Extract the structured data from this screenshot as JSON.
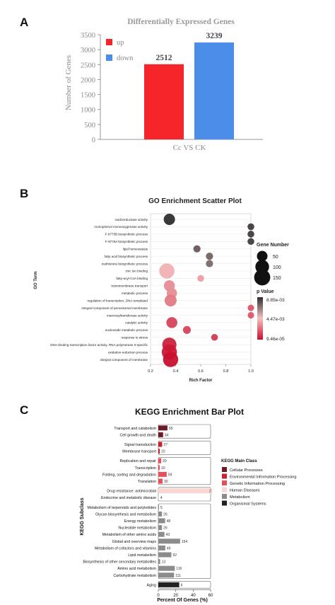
{
  "panels": {
    "a": "A",
    "b": "B",
    "c": "C"
  },
  "chart_data": [
    {
      "type": "bar",
      "title": "Differentially Expressed Genes",
      "categories": [
        "Cc VS CK"
      ],
      "series": [
        {
          "name": "up",
          "values": [
            2512
          ],
          "color": "#f5252a"
        },
        {
          "name": "down",
          "values": [
            3239
          ],
          "color": "#4a8eea"
        }
      ],
      "xlabel": "Cc VS CK",
      "ylabel": "Number of Genes",
      "ylim": [
        0,
        3500
      ],
      "yticks": [
        "0",
        "500",
        "1000",
        "1500",
        "2000",
        "2500",
        "3000",
        "3500"
      ],
      "data_labels": [
        "2512",
        "3239"
      ],
      "legend_position": "top-left",
      "grid": false
    },
    {
      "type": "scatter",
      "title": "GO Enrichment Scatter Plot",
      "xlabel": "Rich Factor",
      "ylabel": "GO Term",
      "xlim": [
        0.2,
        1.0
      ],
      "xticks": [
        "0.2",
        "0.4",
        "0.6",
        "0.8",
        "1.0"
      ],
      "terms": [
        "oxidoreductase activity",
        "monophenol monooxygenase activity",
        "F-9775B biosynthetic process",
        "F-9775A biosynthetic process",
        "lipid homeostasis",
        "fatty acid biosynthetic process",
        "methionine biosynthetic process",
        "zinc ion binding",
        "fatty-acyl-CoA binding",
        "transmembrane transport",
        "metabolic process",
        "regulation of transcription, DNA-templated",
        "integral component of peroxisomal membrane",
        "mannosyltransferase activity",
        "catalytic activity",
        "nucleoside metabolic process",
        "response to stress",
        "DNA-binding transcription factor activity, RNA polymerase II-specific",
        "oxidation-reduction process",
        "integral component of membrane"
      ],
      "rich_factor": [
        0.35,
        1.0,
        1.0,
        1.0,
        0.57,
        0.67,
        0.67,
        0.33,
        0.6,
        0.35,
        0.37,
        0.36,
        1.0,
        1.0,
        0.37,
        0.49,
        0.71,
        0.35,
        0.35,
        0.36
      ],
      "gene_number": [
        60,
        12,
        12,
        12,
        15,
        15,
        15,
        130,
        12,
        55,
        45,
        70,
        10,
        10,
        55,
        20,
        12,
        110,
        130,
        130
      ],
      "p_value_rank": [
        0.0,
        0.05,
        0.05,
        0.05,
        0.15,
        0.18,
        0.2,
        0.55,
        0.6,
        0.65,
        0.65,
        0.7,
        0.8,
        0.8,
        0.85,
        0.85,
        0.88,
        0.95,
        0.98,
        1.0
      ],
      "size_legend": {
        "title": "Gene Number",
        "values": [
          "50",
          "100",
          "150"
        ]
      },
      "color_legend": {
        "title": "p Value",
        "labels": [
          "8.85e-03",
          "4.47e-03",
          "9.46e-05"
        ],
        "colors": [
          "#2e2e2e",
          "#f4c2c2",
          "#c8102e"
        ]
      }
    },
    {
      "type": "bar",
      "orientation": "horizontal",
      "title": "KEGG Enrichment Bar Plot",
      "xlabel": "Percent Of Genes (%)",
      "ylabel": "KEGG Subclass",
      "xlim": [
        0,
        60
      ],
      "xticks": [
        "0",
        "20",
        "40",
        "60"
      ],
      "groups": [
        {
          "class": "Cellular Processes",
          "color": "#6b1b25",
          "items": [
            {
              "label": "Transport and catabolism",
              "percent": 10.5,
              "count": "65"
            },
            {
              "label": "Cell growth and death",
              "percent": 5.5,
              "count": "34"
            }
          ]
        },
        {
          "class": "Environmental Information Processing",
          "color": "#c8202e",
          "items": [
            {
              "label": "Signal transduction",
              "percent": 4.4,
              "count": "27"
            },
            {
              "label": "Membrane transport",
              "percent": 1.6,
              "count": "10"
            }
          ]
        },
        {
          "class": "Genetic Information Processing",
          "color": "#e4505c",
          "items": [
            {
              "label": "Replication and repair",
              "percent": 3.3,
              "count": "20"
            },
            {
              "label": "Transcription",
              "percent": 1.6,
              "count": "10"
            },
            {
              "label": "Folding, sorting and degradation",
              "percent": 9.6,
              "count": "59"
            },
            {
              "label": "Translation",
              "percent": 4.9,
              "count": "30"
            }
          ]
        },
        {
          "class": "Human Diseases",
          "color": "#fbd7d4",
          "items": [
            {
              "label": "Drug resistance: antimicrobial",
              "percent": 63.0,
              "count": "2"
            },
            {
              "label": "Endocrine and metabolic disease",
              "percent": 0.7,
              "count": "4"
            }
          ]
        },
        {
          "class": "Metabolism",
          "color": "#8c8c8c",
          "items": [
            {
              "label": "Metabolism of terpenoids and polyketides",
              "percent": 0.8,
              "count": "5"
            },
            {
              "label": "Glycan biosynthesis and metabolism",
              "percent": 4.2,
              "count": "26"
            },
            {
              "label": "Energy metabolism",
              "percent": 7.8,
              "count": "48"
            },
            {
              "label": "Nucleotide metabolism",
              "percent": 4.2,
              "count": "26"
            },
            {
              "label": "Metabolism of other amino acids",
              "percent": 7.0,
              "count": "43"
            },
            {
              "label": "Global and overview maps",
              "percent": 25.0,
              "count": "154"
            },
            {
              "label": "Metabolism of cofactors and vitamins",
              "percent": 8.0,
              "count": "49"
            },
            {
              "label": "Lipid metabolism",
              "percent": 15.0,
              "count": "92"
            },
            {
              "label": "Biosynthesis of other secondary metabolites",
              "percent": 2.1,
              "count": "13"
            },
            {
              "label": "Amino acid metabolism",
              "percent": 18.9,
              "count": "116"
            },
            {
              "label": "Carbohydrate metabolism",
              "percent": 18.0,
              "count": "111"
            }
          ]
        },
        {
          "class": "Organismal Systems",
          "color": "#222222",
          "items": [
            {
              "label": "Aging",
              "percent": 24.0,
              "count": "6"
            }
          ]
        }
      ],
      "legend_title": "KEGG Main Class",
      "legend_position": "right"
    }
  ]
}
